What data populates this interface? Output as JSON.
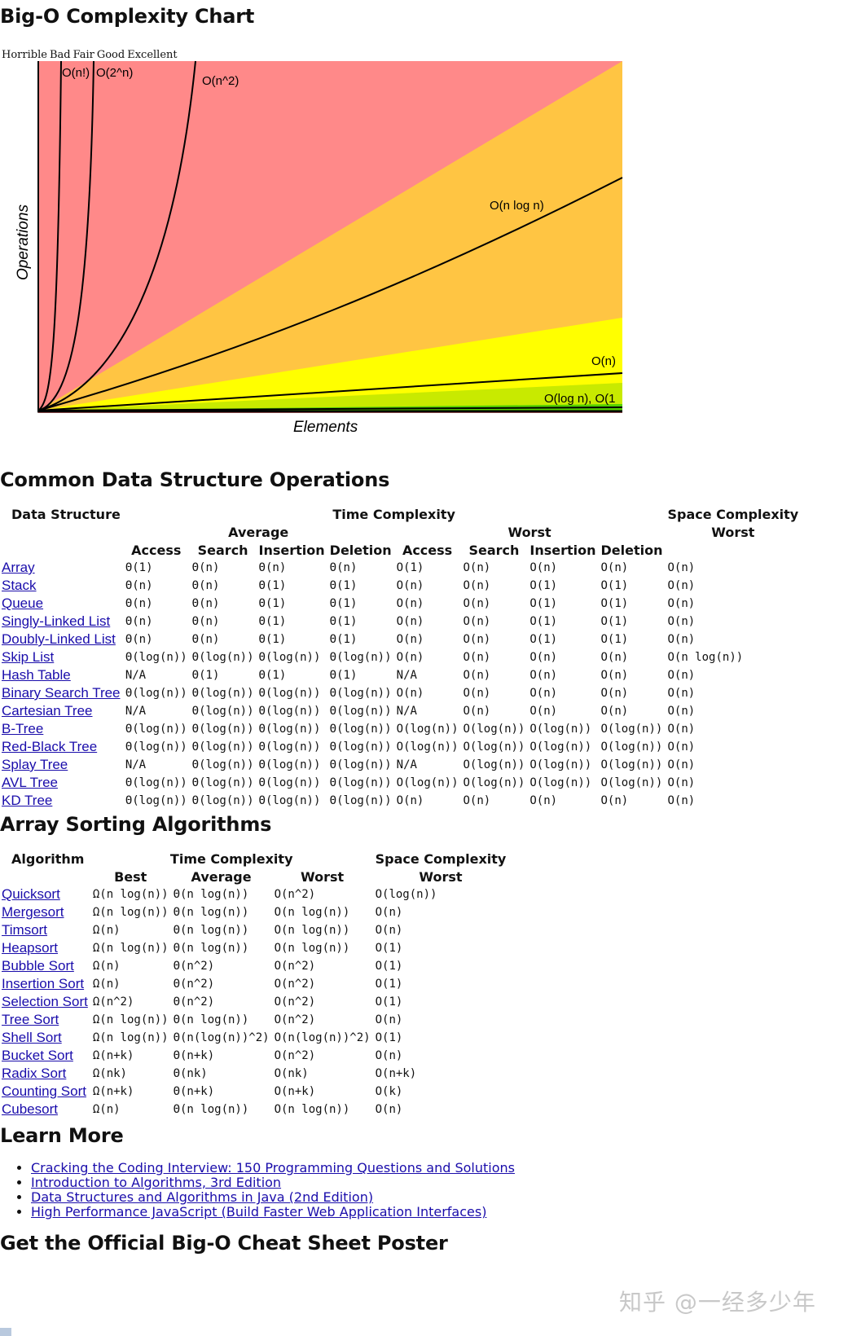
{
  "page_title": "Big-O Complexity Chart",
  "legend": [
    "Horrible",
    "Bad",
    "Fair",
    "Good",
    "Excellent"
  ],
  "chart_data": {
    "type": "area",
    "xlabel": "Elements",
    "ylabel": "Operations",
    "regions": [
      {
        "name": "Horrible",
        "color": "#ff8989"
      },
      {
        "name": "Bad",
        "color": "#ffc543"
      },
      {
        "name": "Fair",
        "color": "#ffff00"
      },
      {
        "name": "Good",
        "color": "#c8ea00"
      },
      {
        "name": "Excellent",
        "color": "#53d000"
      }
    ],
    "curves": [
      "O(n!)",
      "O(2^n)",
      "O(n^2)",
      "O(n log n)",
      "O(n)",
      "O(log n), O(1"
    ]
  },
  "ds_section": {
    "title": "Common Data Structure Operations",
    "headers": {
      "data_structure": "Data Structure",
      "time_complexity": "Time Complexity",
      "space_complexity": "Space Complexity",
      "average": "Average",
      "worst": "Worst",
      "space_worst": "Worst",
      "cols": [
        "Access",
        "Search",
        "Insertion",
        "Deletion",
        "Access",
        "Search",
        "Insertion",
        "Deletion"
      ]
    },
    "rows": [
      {
        "name": "Array",
        "values": [
          "Θ(1)",
          "Θ(n)",
          "Θ(n)",
          "Θ(n)",
          "O(1)",
          "O(n)",
          "O(n)",
          "O(n)",
          "O(n)"
        ]
      },
      {
        "name": "Stack",
        "values": [
          "Θ(n)",
          "Θ(n)",
          "Θ(1)",
          "Θ(1)",
          "O(n)",
          "O(n)",
          "O(1)",
          "O(1)",
          "O(n)"
        ]
      },
      {
        "name": "Queue",
        "values": [
          "Θ(n)",
          "Θ(n)",
          "Θ(1)",
          "Θ(1)",
          "O(n)",
          "O(n)",
          "O(1)",
          "O(1)",
          "O(n)"
        ]
      },
      {
        "name": "Singly-Linked List",
        "values": [
          "Θ(n)",
          "Θ(n)",
          "Θ(1)",
          "Θ(1)",
          "O(n)",
          "O(n)",
          "O(1)",
          "O(1)",
          "O(n)"
        ]
      },
      {
        "name": "Doubly-Linked List",
        "values": [
          "Θ(n)",
          "Θ(n)",
          "Θ(1)",
          "Θ(1)",
          "O(n)",
          "O(n)",
          "O(1)",
          "O(1)",
          "O(n)"
        ]
      },
      {
        "name": "Skip List",
        "values": [
          "Θ(log(n))",
          "Θ(log(n))",
          "Θ(log(n))",
          "Θ(log(n))",
          "O(n)",
          "O(n)",
          "O(n)",
          "O(n)",
          "O(n log(n))"
        ]
      },
      {
        "name": "Hash Table",
        "values": [
          "N/A",
          "Θ(1)",
          "Θ(1)",
          "Θ(1)",
          "N/A",
          "O(n)",
          "O(n)",
          "O(n)",
          "O(n)"
        ]
      },
      {
        "name": "Binary Search Tree",
        "values": [
          "Θ(log(n))",
          "Θ(log(n))",
          "Θ(log(n))",
          "Θ(log(n))",
          "O(n)",
          "O(n)",
          "O(n)",
          "O(n)",
          "O(n)"
        ]
      },
      {
        "name": "Cartesian Tree",
        "values": [
          "N/A",
          "Θ(log(n))",
          "Θ(log(n))",
          "Θ(log(n))",
          "N/A",
          "O(n)",
          "O(n)",
          "O(n)",
          "O(n)"
        ]
      },
      {
        "name": "B-Tree",
        "values": [
          "Θ(log(n))",
          "Θ(log(n))",
          "Θ(log(n))",
          "Θ(log(n))",
          "O(log(n))",
          "O(log(n))",
          "O(log(n))",
          "O(log(n))",
          "O(n)"
        ]
      },
      {
        "name": "Red-Black Tree",
        "values": [
          "Θ(log(n))",
          "Θ(log(n))",
          "Θ(log(n))",
          "Θ(log(n))",
          "O(log(n))",
          "O(log(n))",
          "O(log(n))",
          "O(log(n))",
          "O(n)"
        ]
      },
      {
        "name": "Splay Tree",
        "values": [
          "N/A",
          "Θ(log(n))",
          "Θ(log(n))",
          "Θ(log(n))",
          "N/A",
          "O(log(n))",
          "O(log(n))",
          "O(log(n))",
          "O(n)"
        ]
      },
      {
        "name": "AVL Tree",
        "values": [
          "Θ(log(n))",
          "Θ(log(n))",
          "Θ(log(n))",
          "Θ(log(n))",
          "O(log(n))",
          "O(log(n))",
          "O(log(n))",
          "O(log(n))",
          "O(n)"
        ]
      },
      {
        "name": "KD Tree",
        "values": [
          "Θ(log(n))",
          "Θ(log(n))",
          "Θ(log(n))",
          "Θ(log(n))",
          "O(n)",
          "O(n)",
          "O(n)",
          "O(n)",
          "O(n)"
        ]
      }
    ]
  },
  "sort_section": {
    "title": "Array Sorting Algorithms",
    "headers": {
      "algorithm": "Algorithm",
      "time_complexity": "Time Complexity",
      "space_complexity": "Space Complexity",
      "cols": [
        "Best",
        "Average",
        "Worst"
      ],
      "space_worst": "Worst"
    },
    "rows": [
      {
        "name": "Quicksort",
        "values": [
          "Ω(n log(n))",
          "Θ(n log(n))",
          "O(n^2)",
          "O(log(n))"
        ]
      },
      {
        "name": "Mergesort",
        "values": [
          "Ω(n log(n))",
          "Θ(n log(n))",
          "O(n log(n))",
          "O(n)"
        ]
      },
      {
        "name": "Timsort",
        "values": [
          "Ω(n)",
          "Θ(n log(n))",
          "O(n log(n))",
          "O(n)"
        ]
      },
      {
        "name": "Heapsort",
        "values": [
          "Ω(n log(n))",
          "Θ(n log(n))",
          "O(n log(n))",
          "O(1)"
        ]
      },
      {
        "name": "Bubble Sort",
        "values": [
          "Ω(n)",
          "Θ(n^2)",
          "O(n^2)",
          "O(1)"
        ]
      },
      {
        "name": "Insertion Sort",
        "values": [
          "Ω(n)",
          "Θ(n^2)",
          "O(n^2)",
          "O(1)"
        ]
      },
      {
        "name": "Selection Sort",
        "values": [
          "Ω(n^2)",
          "Θ(n^2)",
          "O(n^2)",
          "O(1)"
        ]
      },
      {
        "name": "Tree Sort",
        "values": [
          "Ω(n log(n))",
          "Θ(n log(n))",
          "O(n^2)",
          "O(n)"
        ]
      },
      {
        "name": "Shell Sort",
        "values": [
          "Ω(n log(n))",
          "Θ(n(log(n))^2)",
          "O(n(log(n))^2)",
          "O(1)"
        ]
      },
      {
        "name": "Bucket Sort",
        "values": [
          "Ω(n+k)",
          "Θ(n+k)",
          "O(n^2)",
          "O(n)"
        ]
      },
      {
        "name": "Radix Sort",
        "values": [
          "Ω(nk)",
          "Θ(nk)",
          "O(nk)",
          "O(n+k)"
        ]
      },
      {
        "name": "Counting Sort",
        "values": [
          "Ω(n+k)",
          "Θ(n+k)",
          "O(n+k)",
          "O(k)"
        ]
      },
      {
        "name": "Cubesort",
        "values": [
          "Ω(n)",
          "Θ(n log(n))",
          "O(n log(n))",
          "O(n)"
        ]
      }
    ]
  },
  "learn_more": {
    "title": "Learn More",
    "links": [
      "Cracking the Coding Interview: 150 Programming Questions and Solutions",
      "Introduction to Algorithms, 3rd Edition",
      "Data Structures and Algorithms in Java (2nd Edition)",
      "High Performance JavaScript (Build Faster Web Application Interfaces)"
    ]
  },
  "poster_title": "Get the Official Big-O Cheat Sheet Poster",
  "watermark": "知乎 @一经多少年"
}
